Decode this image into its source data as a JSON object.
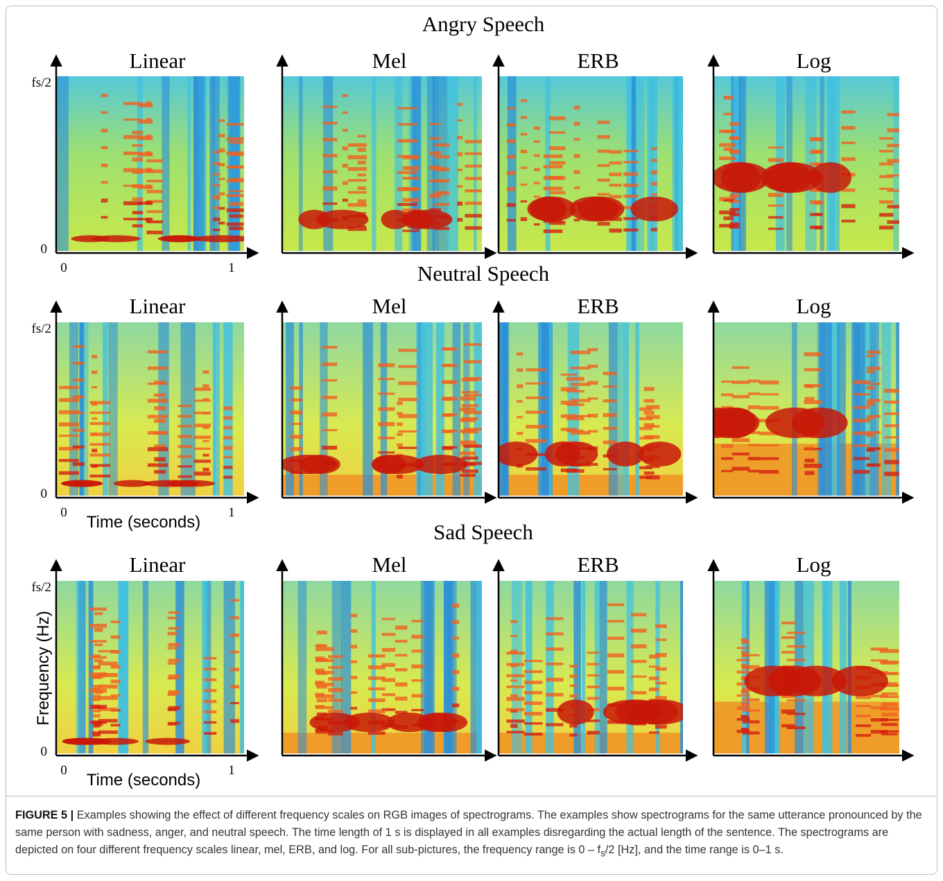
{
  "figure": {
    "rows": [
      {
        "title": "Angry Speech",
        "panels": [
          {
            "title": "Linear",
            "y_top": "fs/2",
            "y_bottom": "0",
            "x_left": "0",
            "x_right": "1"
          },
          {
            "title": "Mel"
          },
          {
            "title": "ERB"
          },
          {
            "title": "Log"
          }
        ]
      },
      {
        "title": "Neutral Speech",
        "panels": [
          {
            "title": "Linear",
            "y_top": "fs/2",
            "y_bottom": "0",
            "x_left": "0",
            "x_right": "1",
            "x_label": "Time (seconds)"
          },
          {
            "title": "Mel"
          },
          {
            "title": "ERB"
          },
          {
            "title": "Log"
          }
        ]
      },
      {
        "title": "Sad Speech",
        "panels": [
          {
            "title": "Linear",
            "y_top": "fs/2",
            "y_bottom": "0",
            "x_left": "0",
            "x_right": "1",
            "x_label": "Time (seconds)",
            "y_label": "Frequency (Hz)"
          },
          {
            "title": "Mel"
          },
          {
            "title": "ERB"
          },
          {
            "title": "Log"
          }
        ]
      }
    ],
    "caption": {
      "label": "FIGURE 5 |",
      "text_before": " Examples showing the effect of different frequency scales on RGB images of spectrograms. The examples show spectrograms for the same utterance pronounced by the same person with sadness, anger, and neutral speech. The time length of 1 s is displayed in all examples disregarding the actual length of the sentence. The spectrograms are depicted on four different frequency scales linear, mel, ERB, and log. For all sub-pictures, the frequency range is 0 – f",
      "subscript": "s",
      "text_after": "/2 [Hz], and the time range is 0–1 s."
    }
  }
}
